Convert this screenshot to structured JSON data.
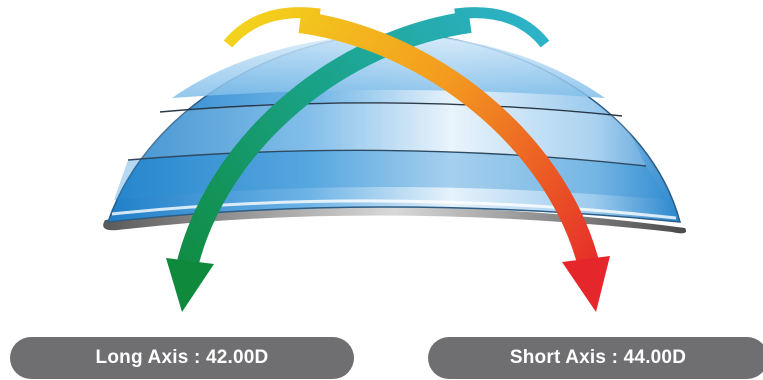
{
  "labels": {
    "long_axis": "Long Axis : 42.00D",
    "short_axis": "Short Axis : 44.00D"
  },
  "colors": {
    "pill_background": "#6f6f72",
    "lens_blue_dark": "#1f7fc8",
    "lens_blue_light": "#cfe6f7",
    "arrow_green": "#0f8a3c",
    "arrow_red": "#e5262a",
    "arrow_orange": "#f39a1f",
    "arrow_yellow": "#f3d21c",
    "arrow_teal": "#2db2c7"
  }
}
